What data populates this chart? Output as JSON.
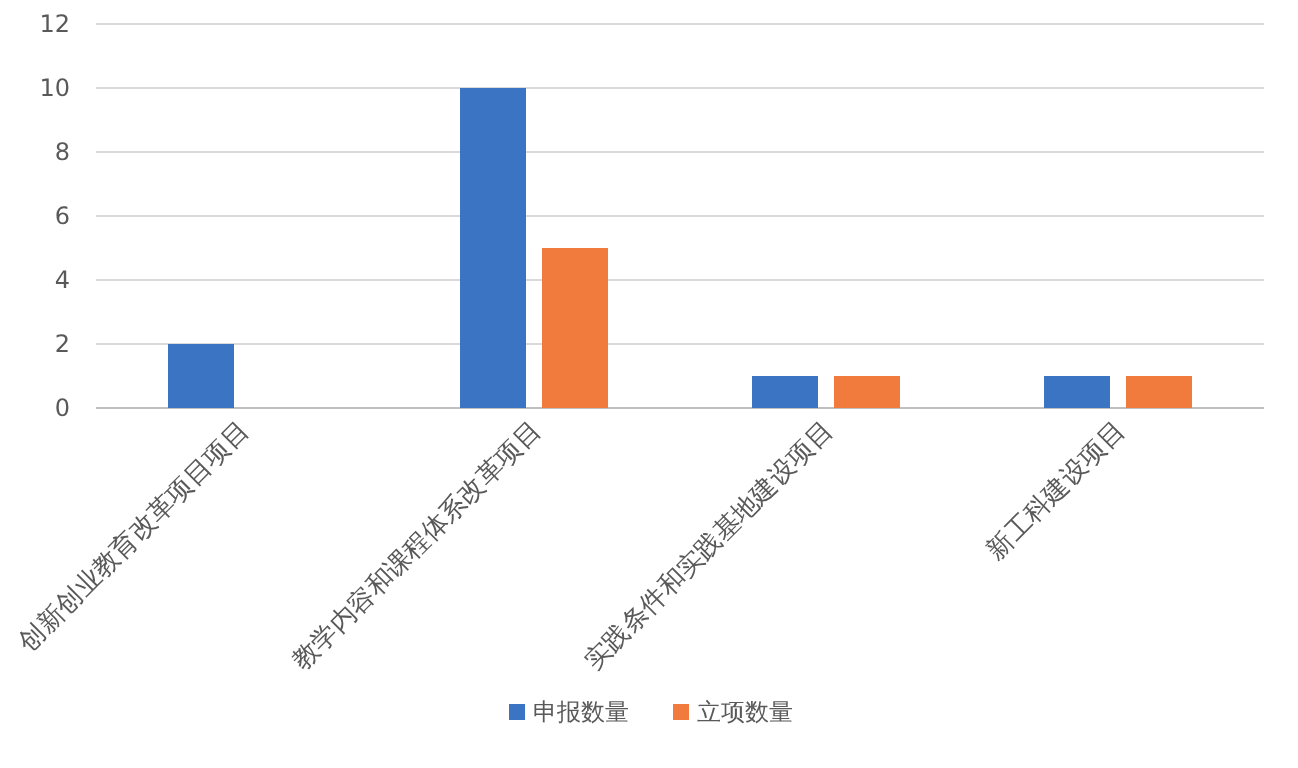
{
  "chart_data": {
    "type": "bar",
    "categories": [
      "创新创业教育改革项目项目",
      "教学内容和课程体系改革项目",
      "实践条件和实践基地建设项目",
      "新工科建设项目"
    ],
    "series": [
      {
        "name": "申报数量",
        "color": "#3b74c3",
        "values": [
          2,
          10,
          1,
          1
        ]
      },
      {
        "name": "立项数量",
        "color": "#f07b3c",
        "values": [
          0,
          5,
          1,
          1
        ]
      }
    ],
    "ylim": [
      0,
      12
    ],
    "yticks": [
      0,
      2,
      4,
      6,
      8,
      10,
      12
    ],
    "grid": "y",
    "legend": "bottom"
  }
}
